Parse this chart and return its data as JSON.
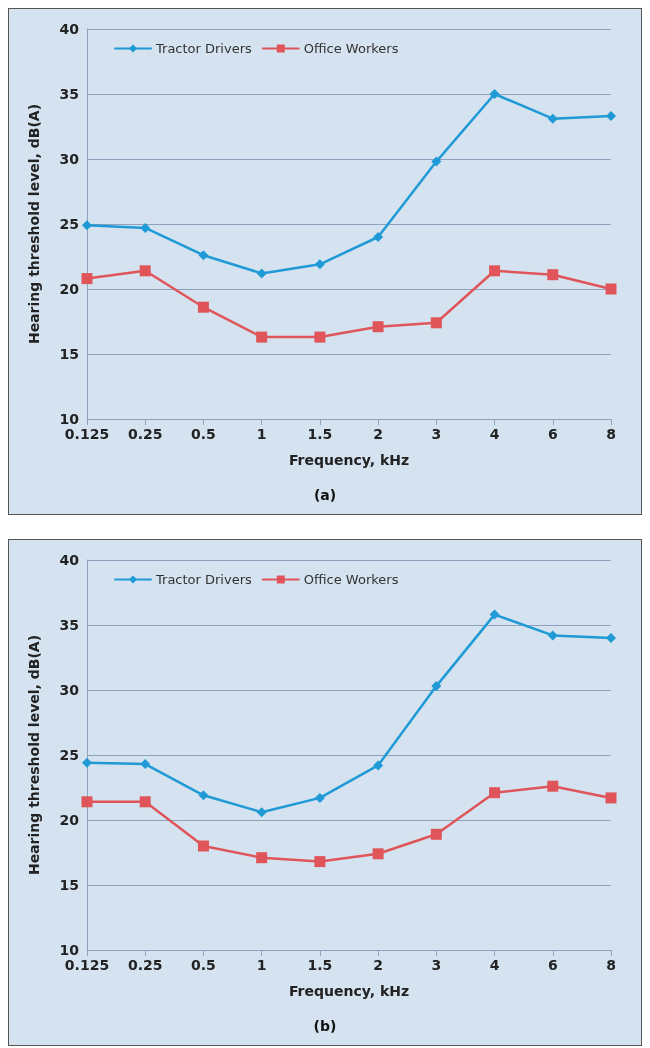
{
  "chart_data": [
    {
      "type": "line",
      "xlabel": "Frequency, kHz",
      "ylabel": "Hearing threshold level, dB(A)",
      "annotations": [
        "(a)"
      ],
      "categories": [
        "0.125",
        "0.25",
        "0.5",
        "1",
        "1.5",
        "2",
        "3",
        "4",
        "6",
        "8"
      ],
      "series": [
        {
          "name": "Tractor Drivers",
          "color": "#1f9ad6",
          "marker": "diamond",
          "values": [
            24.9,
            24.7,
            22.6,
            21.2,
            21.9,
            24.0,
            29.8,
            35.0,
            33.1,
            33.3
          ]
        },
        {
          "name": "Office Workers",
          "color": "#e0555a",
          "marker": "square",
          "values": [
            20.8,
            21.4,
            18.6,
            16.3,
            16.3,
            17.1,
            17.4,
            21.4,
            21.1,
            20.0
          ]
        }
      ],
      "ylim": [
        10,
        40
      ],
      "yticks": [
        10,
        15,
        20,
        25,
        30,
        35,
        40
      ],
      "grid": "y",
      "legend": "top left",
      "line_style": "solid"
    },
    {
      "type": "line",
      "xlabel": "Frequency, kHz",
      "ylabel": "Hearing threshold level, dB(A)",
      "annotations": [
        "(b)"
      ],
      "categories": [
        "0.125",
        "0.25",
        "0.5",
        "1",
        "1.5",
        "2",
        "3",
        "4",
        "6",
        "8"
      ],
      "series": [
        {
          "name": "Tractor Drivers",
          "color": "#1f9ad6",
          "marker": "diamond",
          "values": [
            24.4,
            24.3,
            21.9,
            20.6,
            21.7,
            24.2,
            30.3,
            35.8,
            34.2,
            34.0
          ]
        },
        {
          "name": "Office Workers",
          "color": "#e0555a",
          "marker": "square",
          "values": [
            21.4,
            21.4,
            18.0,
            17.1,
            16.8,
            17.4,
            18.9,
            22.1,
            22.6,
            21.7
          ]
        }
      ],
      "ylim": [
        10,
        40
      ],
      "yticks": [
        10,
        15,
        20,
        25,
        30,
        35,
        40
      ],
      "grid": "y",
      "legend": "top left",
      "line_style": "solid"
    }
  ]
}
